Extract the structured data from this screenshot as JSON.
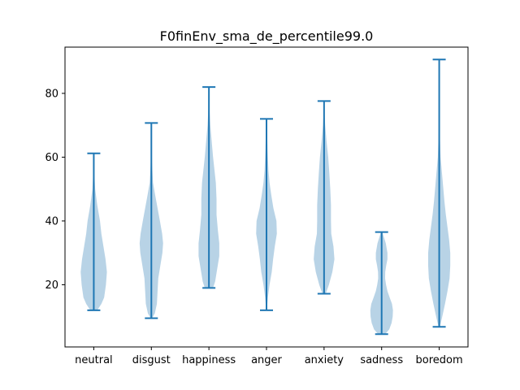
{
  "chart_data": {
    "type": "violin",
    "title": "F0finEnv_sma_de_percentile99.0",
    "xlabel": "",
    "ylabel": "",
    "categories": [
      "neutral",
      "disgust",
      "happiness",
      "anger",
      "anxiety",
      "sadness",
      "boredom"
    ],
    "y_ticks": [
      20,
      40,
      60,
      80
    ],
    "ylim": [
      0.5,
      94.5
    ],
    "colors": {
      "fill": "#a6c8e0",
      "line": "#1f77b4"
    },
    "series": [
      {
        "category": "neutral",
        "min": 12.0,
        "max": 61.2,
        "density": [
          [
            12.0,
            0.25
          ],
          [
            14,
            0.55
          ],
          [
            16,
            0.75
          ],
          [
            20,
            0.88
          ],
          [
            24,
            0.95
          ],
          [
            28,
            0.85
          ],
          [
            32,
            0.7
          ],
          [
            36,
            0.55
          ],
          [
            40,
            0.45
          ],
          [
            45,
            0.25
          ],
          [
            50,
            0.1
          ],
          [
            55,
            0.04
          ],
          [
            61.2,
            0.01
          ]
        ]
      },
      {
        "category": "disgust",
        "min": 9.5,
        "max": 70.7,
        "density": [
          [
            9.5,
            0.05
          ],
          [
            11,
            0.25
          ],
          [
            14,
            0.4
          ],
          [
            18,
            0.45
          ],
          [
            22,
            0.5
          ],
          [
            26,
            0.65
          ],
          [
            30,
            0.8
          ],
          [
            33,
            0.85
          ],
          [
            36,
            0.78
          ],
          [
            40,
            0.62
          ],
          [
            44,
            0.45
          ],
          [
            48,
            0.28
          ],
          [
            52,
            0.12
          ],
          [
            58,
            0.05
          ],
          [
            65,
            0.02
          ],
          [
            70.7,
            0.01
          ]
        ]
      },
      {
        "category": "happiness",
        "min": 19.0,
        "max": 82.0,
        "density": [
          [
            19.0,
            0.3
          ],
          [
            21,
            0.45
          ],
          [
            25,
            0.6
          ],
          [
            29,
            0.75
          ],
          [
            33,
            0.75
          ],
          [
            37,
            0.65
          ],
          [
            42,
            0.55
          ],
          [
            47,
            0.55
          ],
          [
            52,
            0.5
          ],
          [
            56,
            0.4
          ],
          [
            60,
            0.3
          ],
          [
            65,
            0.2
          ],
          [
            70,
            0.1
          ],
          [
            75,
            0.04
          ],
          [
            82,
            0.01
          ]
        ]
      },
      {
        "category": "anger",
        "min": 12.0,
        "max": 72.0,
        "density": [
          [
            12.0,
            0.02
          ],
          [
            16,
            0.1
          ],
          [
            20,
            0.22
          ],
          [
            24,
            0.38
          ],
          [
            28,
            0.48
          ],
          [
            32,
            0.6
          ],
          [
            36,
            0.75
          ],
          [
            40,
            0.72
          ],
          [
            44,
            0.5
          ],
          [
            48,
            0.35
          ],
          [
            52,
            0.22
          ],
          [
            56,
            0.14
          ],
          [
            62,
            0.08
          ],
          [
            67,
            0.05
          ],
          [
            72,
            0.02
          ]
        ]
      },
      {
        "category": "anxiety",
        "min": 17.2,
        "max": 77.6,
        "density": [
          [
            17.2,
            0.12
          ],
          [
            20,
            0.35
          ],
          [
            24,
            0.6
          ],
          [
            28,
            0.75
          ],
          [
            32,
            0.68
          ],
          [
            36,
            0.52
          ],
          [
            40,
            0.5
          ],
          [
            45,
            0.5
          ],
          [
            50,
            0.45
          ],
          [
            55,
            0.38
          ],
          [
            60,
            0.3
          ],
          [
            65,
            0.18
          ],
          [
            70,
            0.08
          ],
          [
            74,
            0.03
          ],
          [
            77.6,
            0.01
          ]
        ]
      },
      {
        "category": "sadness",
        "min": 4.5,
        "max": 36.5,
        "density": [
          [
            4.5,
            0.25
          ],
          [
            6,
            0.55
          ],
          [
            8,
            0.72
          ],
          [
            10,
            0.8
          ],
          [
            12,
            0.82
          ],
          [
            14,
            0.75
          ],
          [
            16,
            0.58
          ],
          [
            18,
            0.42
          ],
          [
            20,
            0.32
          ],
          [
            22,
            0.25
          ],
          [
            24,
            0.26
          ],
          [
            26,
            0.33
          ],
          [
            28,
            0.42
          ],
          [
            30,
            0.42
          ],
          [
            33,
            0.3
          ],
          [
            36.5,
            0.05
          ]
        ]
      },
      {
        "category": "boredom",
        "min": 6.8,
        "max": 90.6,
        "density": [
          [
            6.8,
            0.05
          ],
          [
            10,
            0.22
          ],
          [
            14,
            0.42
          ],
          [
            18,
            0.6
          ],
          [
            22,
            0.75
          ],
          [
            26,
            0.8
          ],
          [
            30,
            0.8
          ],
          [
            34,
            0.72
          ],
          [
            38,
            0.6
          ],
          [
            42,
            0.48
          ],
          [
            46,
            0.38
          ],
          [
            50,
            0.3
          ],
          [
            55,
            0.2
          ],
          [
            60,
            0.1
          ],
          [
            66,
            0.05
          ],
          [
            75,
            0.02
          ],
          [
            90.6,
            0.005
          ]
        ]
      }
    ]
  }
}
